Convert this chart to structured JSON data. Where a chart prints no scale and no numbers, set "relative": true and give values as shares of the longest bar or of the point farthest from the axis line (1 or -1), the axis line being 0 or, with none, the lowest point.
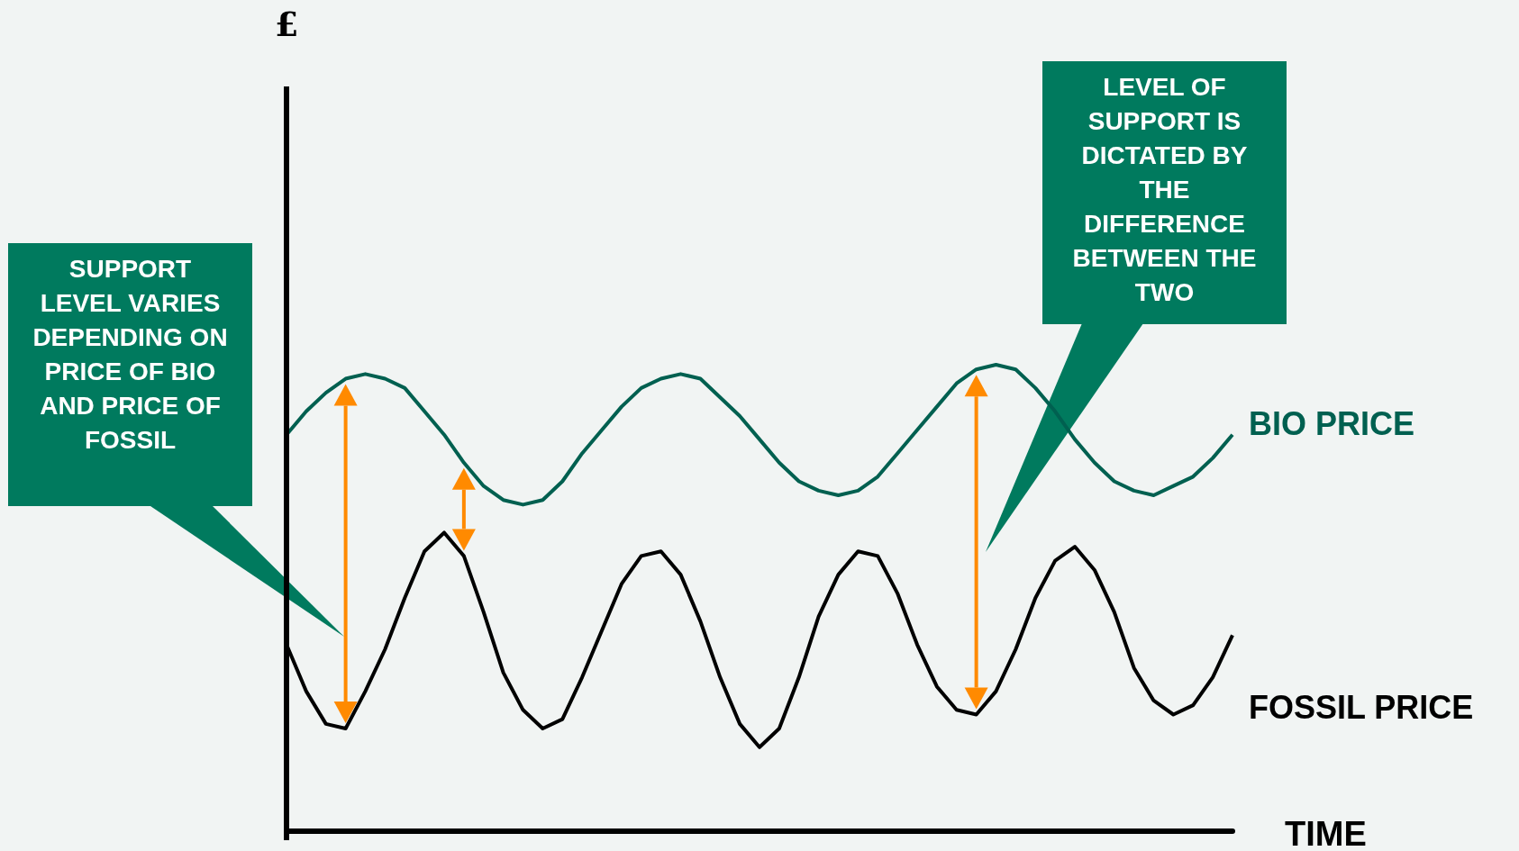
{
  "chart_data": {
    "type": "line",
    "relative": true,
    "xlabel": "TIME",
    "legend": false,
    "grid": false,
    "marker": "none",
    "categories": [
      null,
      null,
      null,
      null,
      null,
      null,
      null,
      null,
      null,
      null,
      null,
      null,
      null,
      null,
      null,
      null,
      null,
      null,
      null,
      null,
      null,
      null,
      null,
      null,
      null,
      null,
      null,
      null,
      null,
      null,
      null,
      null,
      null,
      null,
      null,
      null,
      null,
      null,
      null,
      null,
      null,
      null,
      null,
      null,
      null,
      null,
      null,
      null,
      null
    ],
    "series": [
      {
        "name": "BIO PRICE",
        "color": "#006050",
        "values": [
          0.85,
          0.9,
          0.94,
          0.97,
          0.98,
          0.97,
          0.95,
          0.9,
          0.85,
          0.79,
          0.74,
          0.71,
          0.7,
          0.71,
          0.75,
          0.81,
          0.86,
          0.91,
          0.95,
          0.97,
          0.98,
          0.97,
          0.93,
          0.89,
          0.84,
          0.79,
          0.75,
          0.73,
          0.72,
          0.73,
          0.76,
          0.81,
          0.86,
          0.91,
          0.96,
          0.99,
          1.0,
          0.99,
          0.95,
          0.9,
          0.84,
          0.79,
          0.75,
          0.73,
          0.72,
          0.74,
          0.76,
          0.8,
          0.85
        ]
      },
      {
        "name": "FOSSIL PRICE",
        "color": "#000000",
        "values": [
          0.4,
          0.3,
          0.23,
          0.22,
          0.3,
          0.39,
          0.5,
          0.6,
          0.64,
          0.59,
          0.47,
          0.34,
          0.26,
          0.22,
          0.24,
          0.33,
          0.43,
          0.53,
          0.59,
          0.6,
          0.55,
          0.45,
          0.33,
          0.23,
          0.18,
          0.22,
          0.33,
          0.46,
          0.55,
          0.6,
          0.59,
          0.51,
          0.4,
          0.31,
          0.26,
          0.25,
          0.3,
          0.39,
          0.5,
          0.58,
          0.61,
          0.56,
          0.47,
          0.35,
          0.28,
          0.25,
          0.27,
          0.33,
          0.42
        ]
      }
    ],
    "annotations": [
      "SUPPORT LEVEL VARIES DEPENDING ON PRICE OF BIO AND PRICE OF FOSSIL",
      "LEVEL OF SUPPORT IS DICTATED BY THE DIFFERENCE BETWEEN THE TWO",
      "£"
    ]
  }
}
